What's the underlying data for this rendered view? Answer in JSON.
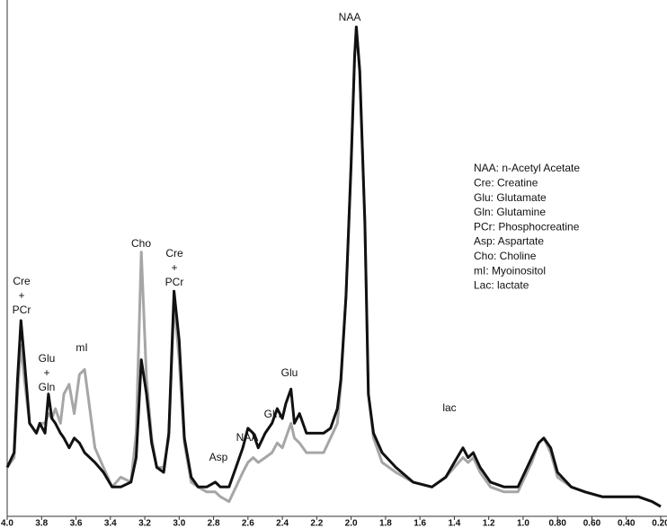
{
  "chart_data": {
    "type": "line",
    "x": [
      4.0,
      3.96,
      3.94,
      3.92,
      3.9,
      3.87,
      3.83,
      3.81,
      3.78,
      3.76,
      3.74,
      3.72,
      3.69,
      3.67,
      3.64,
      3.61,
      3.58,
      3.55,
      3.49,
      3.44,
      3.39,
      3.34,
      3.28,
      3.25,
      3.22,
      3.19,
      3.16,
      3.13,
      3.09,
      3.06,
      3.03,
      3.0,
      2.97,
      2.93,
      2.89,
      2.84,
      2.79,
      2.76,
      2.71,
      2.67,
      2.63,
      2.6,
      2.57,
      2.54,
      2.5,
      2.46,
      2.43,
      2.4,
      2.38,
      2.35,
      2.33,
      2.3,
      2.26,
      2.21,
      2.16,
      2.12,
      2.08,
      2.06,
      2.03,
      2.0,
      1.98,
      1.97,
      1.95,
      1.92,
      1.9,
      1.87,
      1.82,
      1.74,
      1.64,
      1.53,
      1.45,
      1.4,
      1.35,
      1.32,
      1.29,
      1.25,
      1.19,
      1.11,
      1.03,
      0.95,
      0.91,
      0.88,
      0.84,
      0.8,
      0.72,
      0.64,
      0.54,
      0.43,
      0.33,
      0.25,
      0.2
    ],
    "series": [
      {
        "color": "#a6a6a6",
        "values": [
          10,
          12,
          25,
          35,
          28,
          19,
          17,
          19,
          19,
          21,
          20,
          22,
          19,
          25,
          27,
          21,
          29,
          30,
          14,
          10,
          6,
          8,
          7,
          17,
          54,
          28,
          16,
          10,
          10,
          16,
          44,
          32,
          15,
          7,
          6,
          5,
          5,
          4,
          3,
          6,
          9,
          11,
          12,
          11,
          12,
          13,
          15,
          14,
          16,
          19,
          16,
          15,
          13,
          13,
          13,
          16,
          19,
          27,
          45,
          72,
          94,
          100,
          91,
          60,
          25,
          16,
          11,
          9,
          7,
          6,
          8,
          10,
          12,
          11,
          12,
          9,
          6,
          5,
          5,
          11,
          15,
          16,
          13,
          8,
          6,
          5,
          4,
          4,
          4,
          3,
          2
        ]
      },
      {
        "color": "#111111",
        "values": [
          10,
          13,
          28,
          40,
          32,
          19,
          17,
          19,
          17,
          25,
          20,
          19,
          17,
          16,
          14,
          16,
          15,
          13,
          11,
          9,
          6,
          6,
          7,
          12,
          32,
          25,
          15,
          10,
          9,
          17,
          46,
          36,
          16,
          8,
          6,
          6,
          7,
          6,
          6,
          10,
          14,
          18,
          17,
          14,
          17,
          19,
          22,
          20,
          23,
          26,
          19,
          21,
          17,
          17,
          17,
          18,
          22,
          28,
          45,
          72,
          94,
          100,
          91,
          60,
          25,
          17,
          13,
          10,
          7,
          6,
          8,
          11,
          14,
          12,
          13,
          10,
          7,
          6,
          6,
          12,
          15,
          16,
          14,
          9,
          6,
          5,
          4,
          4,
          4,
          3,
          2
        ]
      }
    ],
    "xlim": [
      4,
      0.2
    ],
    "xticks": [
      {
        "value": 4,
        "label": "4.0"
      },
      3.8,
      3.6,
      3.4,
      3.2,
      {
        "value": 3,
        "label": "3.0"
      },
      2.8,
      2.6,
      2.4,
      2.2,
      {
        "value": 2,
        "label": "2.0"
      },
      1.8,
      1.6,
      1.4,
      1.2,
      {
        "value": 1,
        "label": "1.0"
      },
      {
        "value": 0.8,
        "label": "0.80"
      },
      {
        "value": 0.6,
        "label": "0.60"
      },
      {
        "value": 0.4,
        "label": "0.40"
      },
      {
        "value": 0.2,
        "label": "0.20"
      }
    ],
    "ylim": [
      0,
      100
    ],
    "annotations": [
      [
        "Cre",
        "+",
        "PCr"
      ],
      [
        "Glu",
        "+",
        "Gln"
      ],
      [
        "mI"
      ],
      [
        "Cho"
      ],
      [
        "Cre",
        "+",
        "PCr"
      ],
      [
        "Asp"
      ],
      [
        "NAA"
      ],
      [
        "Gln"
      ],
      [
        "Glu"
      ],
      [
        "NAA"
      ],
      [
        "lac"
      ]
    ],
    "notes": [
      "NAA: n-Acetyl Acetate",
      "Cre: Creatine",
      "Glu: Glutamate",
      "Gln: Glutamine",
      "PCr: Phosphocreatine",
      "Asp: Aspartate",
      "Cho: Choline",
      "mI: Myoinositol",
      "Lac: lactate"
    ]
  }
}
